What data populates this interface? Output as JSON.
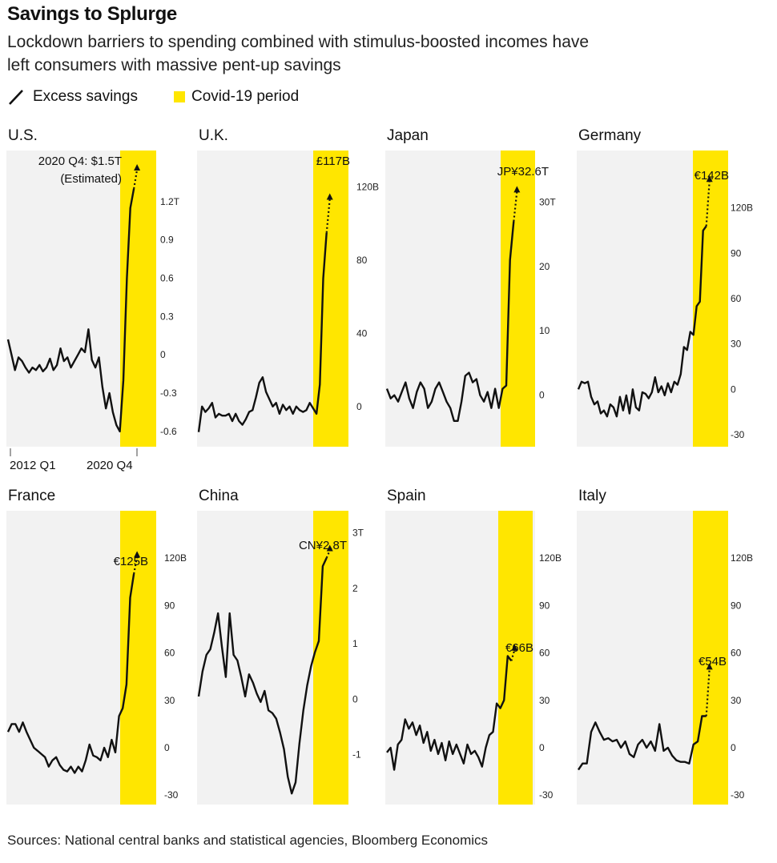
{
  "title": "Savings to Splurge",
  "subtitle_line1": "Lockdown barriers to spending combined with stimulus-boosted incomes have",
  "subtitle_line2": "left consumers with massive pent-up savings",
  "legend": {
    "line_label": "Excess savings",
    "covid_label": "Covid-19 period"
  },
  "source": "Sources: National central banks and statistical agencies, Bloomberg Economics",
  "colors": {
    "covid": "#ffe600",
    "line": "#111111",
    "panel": "#f2f2f2"
  },
  "chart_data": [
    {
      "type": "line",
      "title": "U.S.",
      "unit": "USD trillion",
      "ylim": [
        -0.72,
        1.6
      ],
      "yticks": [
        "1.2T",
        "0.9",
        "0.6",
        "0.3",
        "0",
        "-0.3",
        "-0.6"
      ],
      "ytick_values": [
        1.2,
        0.9,
        0.6,
        0.3,
        0,
        -0.3,
        -0.6
      ],
      "xticks": [
        "2012 Q1",
        "2020 Q4"
      ],
      "values": [
        0.12,
        0.0,
        -0.12,
        -0.02,
        -0.05,
        -0.1,
        -0.14,
        -0.1,
        -0.12,
        -0.08,
        -0.13,
        -0.1,
        -0.03,
        -0.12,
        -0.08,
        0.05,
        -0.05,
        -0.02,
        -0.1,
        -0.05,
        0.0,
        0.05,
        0.02,
        0.2,
        -0.04,
        -0.1,
        -0.02,
        -0.25,
        -0.42,
        -0.3,
        -0.45,
        -0.55,
        -0.6,
        -0.2,
        0.6,
        1.15,
        1.3
      ],
      "estimate": 1.5,
      "annotation": [
        "2020 Q4: $1.5T",
        "(Estimated)"
      ]
    },
    {
      "type": "line",
      "title": "U.K.",
      "unit": "GBP billion",
      "ylim": [
        -22,
        140
      ],
      "yticks": [
        "120B",
        "80",
        "40",
        "0"
      ],
      "ytick_values": [
        120,
        80,
        40,
        0
      ],
      "values": [
        -14,
        0,
        -3,
        -1,
        2,
        -6,
        -4,
        -5,
        -5,
        -4,
        -8,
        -4,
        -8,
        -10,
        -7,
        -3,
        -2,
        5,
        13,
        16,
        8,
        4,
        0,
        2,
        -4,
        1,
        -2,
        0,
        -4,
        0,
        -2,
        -3,
        -2,
        2,
        -1,
        -4,
        12,
        70,
        95
      ],
      "estimate": 117,
      "annotation": [
        "£117B"
      ]
    },
    {
      "type": "line",
      "title": "Japan",
      "unit": "JPY trillion",
      "ylim": [
        -8,
        38
      ],
      "yticks": [
        "30T",
        "20",
        "10",
        "0"
      ],
      "ytick_values": [
        30,
        20,
        10,
        0
      ],
      "values": [
        1,
        -0.5,
        0,
        -1,
        0.5,
        2,
        -0.5,
        -2,
        0.5,
        2,
        1,
        -2,
        -1,
        1,
        2,
        0.5,
        -1,
        -2,
        -4,
        -4,
        -1,
        3,
        3.5,
        2,
        2.5,
        0,
        -1,
        0.5,
        -2,
        1,
        -2,
        1,
        1.5,
        21,
        27
      ],
      "estimate": 32.6,
      "annotation": [
        "JP¥32.6T"
      ]
    },
    {
      "type": "line",
      "title": "Germany",
      "unit": "EUR billion",
      "ylim": [
        -38,
        158
      ],
      "yticks": [
        "120B",
        "90",
        "60",
        "30",
        "0",
        "-30"
      ],
      "ytick_values": [
        120,
        90,
        60,
        30,
        0,
        -30
      ],
      "values": [
        0,
        5,
        4,
        5,
        -5,
        -10,
        -8,
        -16,
        -14,
        -18,
        -10,
        -12,
        -18,
        -5,
        -14,
        -4,
        -16,
        0,
        -12,
        -14,
        -2,
        -3,
        -6,
        -2,
        8,
        -2,
        2,
        -4,
        4,
        -2,
        5,
        3,
        10,
        28,
        26,
        38,
        36,
        55,
        58,
        105,
        108
      ],
      "estimate": 142,
      "annotation": [
        "€142B"
      ]
    },
    {
      "type": "line",
      "title": "France",
      "unit": "EUR billion",
      "ylim": [
        -36,
        150
      ],
      "yticks": [
        "120B",
        "90",
        "60",
        "30",
        "0",
        "-30"
      ],
      "ytick_values": [
        120,
        90,
        60,
        30,
        0,
        -30
      ],
      "values": [
        10,
        15,
        15,
        10,
        16,
        10,
        5,
        0,
        -2,
        -4,
        -6,
        -12,
        -8,
        -6,
        -11,
        -14,
        -15,
        -12,
        -16,
        -12,
        -15,
        -8,
        2,
        -5,
        -6,
        -8,
        0,
        -6,
        5,
        -3,
        20,
        25,
        40,
        95,
        110
      ],
      "estimate": 125,
      "annotation": [
        "€125B"
      ]
    },
    {
      "type": "line",
      "title": "China",
      "unit": "CNY trillion",
      "ylim": [
        -1.9,
        3.4
      ],
      "yticks": [
        "3T",
        "2",
        "1",
        "0",
        "-1"
      ],
      "ytick_values": [
        3,
        2,
        1,
        0,
        -1
      ],
      "values": [
        0.05,
        0.5,
        0.8,
        0.9,
        1.2,
        1.55,
        0.95,
        0.4,
        1.55,
        0.8,
        0.7,
        0.4,
        0.05,
        0.45,
        0.3,
        0.1,
        -0.05,
        0.15,
        -0.2,
        -0.25,
        -0.35,
        -0.6,
        -0.9,
        -1.4,
        -1.7,
        -1.5,
        -0.8,
        -0.2,
        0.25,
        0.6,
        0.85,
        1.05,
        2.4,
        2.55
      ],
      "estimate": 2.8,
      "annotation": [
        "CN¥2.8T"
      ]
    },
    {
      "type": "line",
      "title": "Spain",
      "unit": "EUR billion",
      "ylim": [
        -36,
        150
      ],
      "yticks": [
        "120B",
        "90",
        "60",
        "30",
        "0",
        "-30"
      ],
      "ytick_values": [
        120,
        90,
        60,
        30,
        0,
        -30
      ],
      "values": [
        -3,
        0,
        -14,
        2,
        5,
        18,
        12,
        16,
        8,
        14,
        3,
        10,
        -2,
        5,
        -4,
        3,
        -8,
        4,
        -4,
        2,
        -4,
        -10,
        2,
        -4,
        -2,
        -6,
        -12,
        0,
        8,
        10,
        28,
        25,
        30,
        58,
        55
      ],
      "estimate": 66,
      "annotation": [
        "€66B"
      ]
    },
    {
      "type": "line",
      "title": "Italy",
      "unit": "EUR billion",
      "ylim": [
        -36,
        150
      ],
      "yticks": [
        "120B",
        "90",
        "60",
        "30",
        "0",
        "-30"
      ],
      "ytick_values": [
        120,
        90,
        60,
        30,
        0,
        -30
      ],
      "values": [
        -14,
        -10,
        -10,
        10,
        16,
        10,
        5,
        6,
        4,
        5,
        0,
        4,
        -4,
        -6,
        2,
        5,
        0,
        4,
        -2,
        15,
        -2,
        0,
        -5,
        -8,
        -9,
        -9,
        -10,
        2,
        4,
        20,
        20
      ],
      "estimate": 54,
      "annotation": [
        "€54B"
      ]
    }
  ]
}
